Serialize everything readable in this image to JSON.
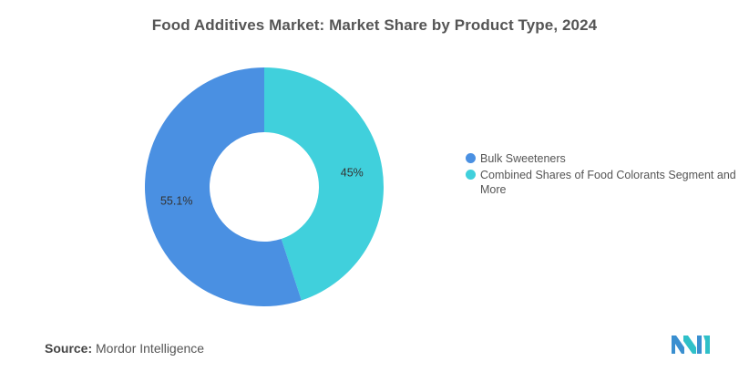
{
  "chart_data": {
    "type": "pie",
    "variant": "donut",
    "title": "Food Additives Market: Market Share by Product Type, 2024",
    "categories": [
      "Bulk Sweeteners",
      "Combined Shares of Food Colorants Segment and More"
    ],
    "values": [
      55.1,
      45
    ],
    "data_labels": [
      "55.1%",
      "45%"
    ],
    "colors": [
      "#4a90e2",
      "#40d0dc"
    ],
    "legend_position": "right",
    "legend": [
      {
        "label": "Bulk Sweeteners",
        "color": "#4a90e2"
      },
      {
        "label": "Combined Shares of Food Colorants Segment and More",
        "color": "#40d0dc"
      }
    ]
  },
  "source": {
    "label": "Source:",
    "text": "Mordor Intelligence"
  },
  "logo": {
    "icon": "mordor-intelligence-logo-icon",
    "colors": [
      "#3a8fd0",
      "#2fc0c8"
    ]
  }
}
